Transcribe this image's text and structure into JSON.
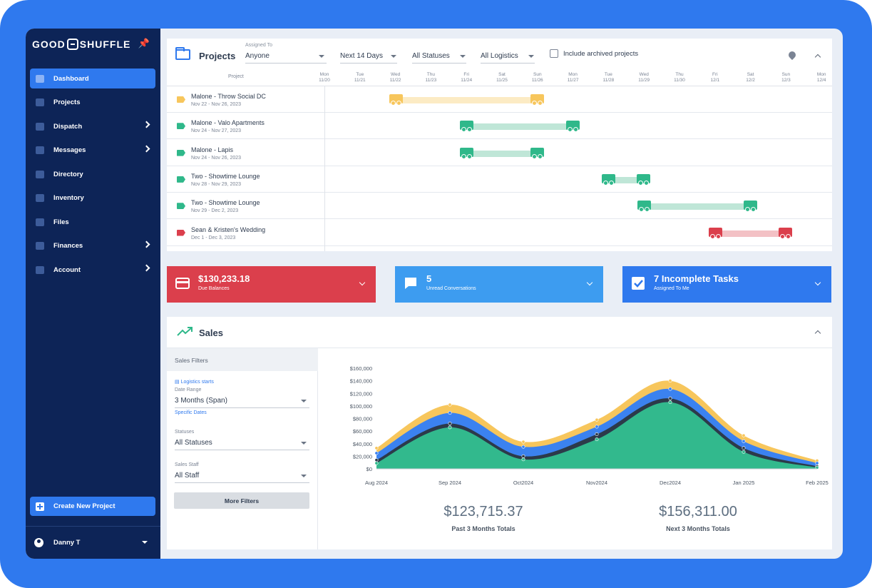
{
  "brand": {
    "name_left": "GOOD",
    "name_right": "SHUFFLE"
  },
  "sidebar": {
    "items": [
      {
        "label": "Dashboard",
        "icon": "dashboard-icon",
        "active": true
      },
      {
        "label": "Projects",
        "icon": "tag-icon"
      },
      {
        "label": "Dispatch",
        "icon": "truck-icon",
        "has_children": true
      },
      {
        "label": "Messages",
        "icon": "chat-icon",
        "has_children": true
      },
      {
        "label": "Directory",
        "icon": "people-icon"
      },
      {
        "label": "Inventory",
        "icon": "sofa-icon"
      },
      {
        "label": "Files",
        "icon": "paperclip-icon"
      },
      {
        "label": "Finances",
        "icon": "bank-icon",
        "has_children": true
      },
      {
        "label": "Account",
        "icon": "gear-icon",
        "has_children": true
      }
    ],
    "create_label": "Create New Project",
    "user_name": "Danny T"
  },
  "projects": {
    "title": "Projects",
    "assigned_label": "Assigned To",
    "assigned_value": "Anyone",
    "range_value": "Next 14 Days",
    "status_value": "All Statuses",
    "logistics_value": "All Logistics",
    "archived_label": "Include archived projects",
    "column_header": "Project",
    "days": [
      {
        "dow": "Mon",
        "date": "11/20"
      },
      {
        "dow": "Tue",
        "date": "11/21"
      },
      {
        "dow": "Wed",
        "date": "11/22"
      },
      {
        "dow": "Thu",
        "date": "11/23"
      },
      {
        "dow": "Fri",
        "date": "11/24"
      },
      {
        "dow": "Sat",
        "date": "11/25"
      },
      {
        "dow": "Sun",
        "date": "11/26"
      },
      {
        "dow": "Mon",
        "date": "11/27"
      },
      {
        "dow": "Tue",
        "date": "11/28"
      },
      {
        "dow": "Wed",
        "date": "11/29"
      },
      {
        "dow": "Thu",
        "date": "11/30"
      },
      {
        "dow": "Fri",
        "date": "12/1"
      },
      {
        "dow": "Sat",
        "date": "12/2"
      },
      {
        "dow": "Sun",
        "date": "12/3"
      },
      {
        "dow": "Mon",
        "date": "12/4"
      }
    ],
    "rows": [
      {
        "name": "Malone - Throw Social DC",
        "dates": "Nov 22 - Nov 26, 2023",
        "color": "#f7c65c",
        "bar_color": "#fcebc4",
        "start_day": 2,
        "end_day": 6
      },
      {
        "name": "Malone - Valo Apartments",
        "dates": "Nov 24 - Nov 27, 2023",
        "color": "#2fb88a",
        "bar_color": "#bfe6d7",
        "start_day": 4,
        "end_day": 7
      },
      {
        "name": "Malone - Lapis",
        "dates": "Nov 24 - Nov 26, 2023",
        "color": "#2fb88a",
        "bar_color": "#bfe6d7",
        "start_day": 4,
        "end_day": 6
      },
      {
        "name": "Two - Showtime Lounge",
        "dates": "Nov 28 - Nov 29, 2023",
        "color": "#2fb88a",
        "bar_color": "#bfe6d7",
        "start_day": 8,
        "end_day": 9
      },
      {
        "name": "Two - Showtime Lounge",
        "dates": "Nov 29 - Dec 2, 2023",
        "color": "#2fb88a",
        "bar_color": "#bfe6d7",
        "start_day": 9,
        "end_day": 12
      },
      {
        "name": "Sean & Kristen's Wedding",
        "dates": "Dec 1 - Dec 3, 2023",
        "color": "#db3f4c",
        "bar_color": "#f3c1c5",
        "start_day": 11,
        "end_day": 13
      }
    ]
  },
  "cards": [
    {
      "value": "$130,233.18",
      "label": "Due Balances",
      "color": "#db3f4c",
      "icon": "credit-card-icon"
    },
    {
      "value": "5",
      "label": "Unread Conversations",
      "color": "#3d9cf0",
      "icon": "chat-bubble-icon"
    },
    {
      "value": "7 Incomplete Tasks",
      "label": "Assigned To Me",
      "color": "#2f79ee",
      "icon": "checkbox-icon"
    }
  ],
  "sales": {
    "title": "Sales",
    "filters_title": "Sales Filters",
    "logistics_link": "Logistics starts",
    "date_range_label": "Date Range",
    "date_range_value": "3 Months (Span)",
    "specific_dates_link": "Specific Dates",
    "statuses_label": "Statuses",
    "statuses_value": "All Statuses",
    "staff_label": "Sales Staff",
    "staff_value": "All Staff",
    "more_filters": "More Filters",
    "past_total": "$123,715.37",
    "past_label": "Past 3 Months Totals",
    "next_total": "$156,311.00",
    "next_label": "Next 3 Months Totals"
  },
  "chart_data": {
    "type": "area",
    "x": [
      "Aug 2024",
      "Sep 2024",
      "Oct2024",
      "Nov2024",
      "Dec2024",
      "Jan 2025",
      "Feb 2025"
    ],
    "y_ticks": [
      "$160,000",
      "$140,000",
      "$120,000",
      "$100,000",
      "$80,000",
      "$60,000",
      "$40,000",
      "$20,000",
      "$0"
    ],
    "ylim": [
      0,
      160000
    ],
    "series": [
      {
        "color": "#f7c65c",
        "values": [
          33000,
          102000,
          43000,
          78000,
          140000,
          53000,
          13000
        ]
      },
      {
        "color": "#3b82f0",
        "values": [
          25000,
          89000,
          35000,
          67000,
          127000,
          44000,
          9000
        ]
      },
      {
        "color": "#2c3a4a",
        "values": [
          14000,
          72000,
          20000,
          55000,
          112000,
          33000,
          4000
        ]
      },
      {
        "color": "#32b98d",
        "values": [
          9000,
          66000,
          15000,
          47000,
          106000,
          27000,
          2000
        ]
      }
    ]
  }
}
